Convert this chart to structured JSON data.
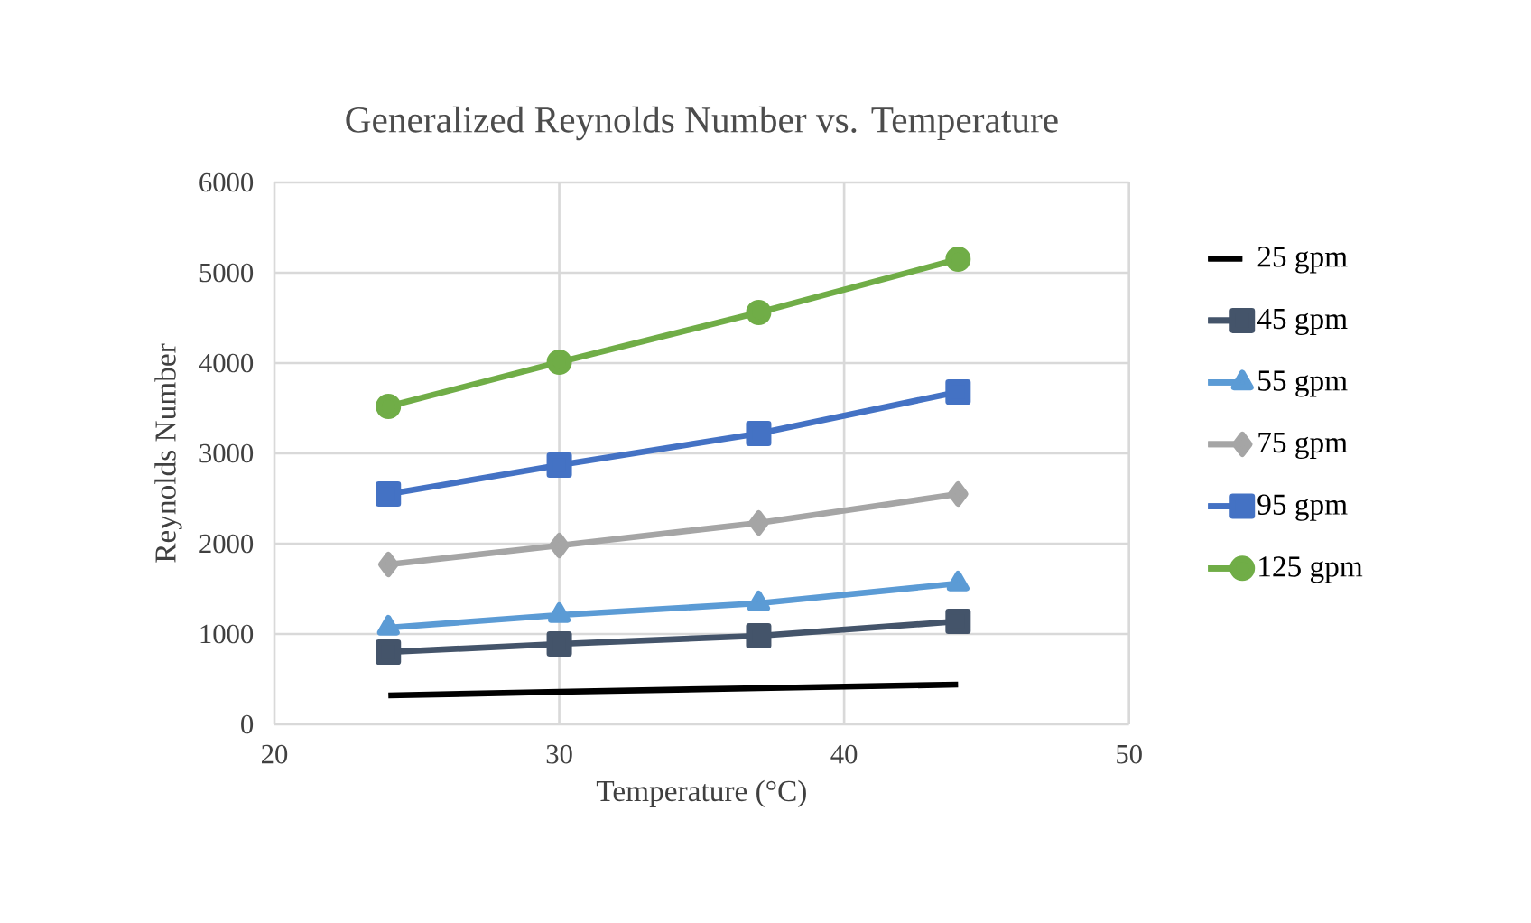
{
  "chart_data": {
    "type": "line",
    "title": "Generalized Reynolds Number vs. Temperature",
    "xlabel": "Temperature (°C)",
    "ylabel": "Reynolds Number",
    "x": [
      24,
      30,
      37,
      44
    ],
    "series": [
      {
        "name": "25 gpm",
        "color": "#000000",
        "marker": "none",
        "values": [
          320,
          360,
          400,
          440
        ]
      },
      {
        "name": "45 gpm",
        "color": "#44546a",
        "marker": "square",
        "values": [
          800,
          890,
          980,
          1140
        ]
      },
      {
        "name": "55 gpm",
        "color": "#5b9bd5",
        "marker": "triangle",
        "values": [
          1070,
          1210,
          1340,
          1560
        ]
      },
      {
        "name": "75 gpm",
        "color": "#a5a5a5",
        "marker": "diamond",
        "values": [
          1770,
          1980,
          2230,
          2550
        ]
      },
      {
        "name": "95 gpm",
        "color": "#4472c4",
        "marker": "square",
        "values": [
          2550,
          2870,
          3220,
          3680
        ]
      },
      {
        "name": "125 gpm",
        "color": "#70ad47",
        "marker": "circle",
        "values": [
          3520,
          4010,
          4560,
          5150
        ]
      }
    ],
    "xlim": [
      20,
      50
    ],
    "xticks": [
      20,
      30,
      40,
      50
    ],
    "ylim": [
      0,
      6000
    ],
    "yticks": [
      0,
      1000,
      2000,
      3000,
      4000,
      5000,
      6000
    ],
    "grid": true,
    "legend": "right",
    "line_style": "solid"
  }
}
